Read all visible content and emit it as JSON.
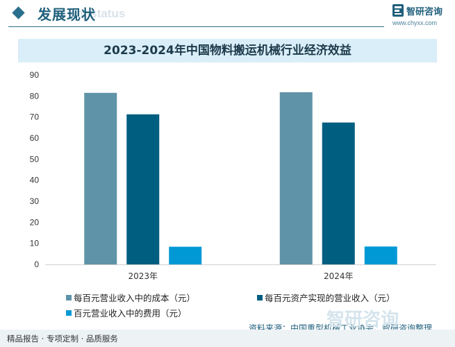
{
  "header": {
    "title": "发展现状",
    "ghost_title": "ent status",
    "logo_name": "智研咨询",
    "logo_url": "www.chyxx.com"
  },
  "colors": {
    "accent": "#2b6f8e",
    "series": [
      "#5f93a8",
      "#005e80",
      "#0099d6"
    ]
  },
  "chart_data": {
    "type": "bar",
    "title": "2023-2024年中国物料搬运机械行业经济效益",
    "categories": [
      "2023年",
      "2024年"
    ],
    "series": [
      {
        "name": "每百元营业收入中的成本（元）",
        "values": [
          81.5,
          81.8
        ]
      },
      {
        "name": "每百元资产实现的营业收入（元）",
        "values": [
          71.3,
          67.4
        ]
      },
      {
        "name": "百元营业收入中的费用（元）",
        "values": [
          8.4,
          8.5
        ]
      }
    ],
    "ylim": [
      0,
      90
    ],
    "yticks": [
      0,
      10,
      20,
      30,
      40,
      50,
      60,
      70,
      80,
      90
    ],
    "xlabel": "",
    "ylabel": "",
    "legend": "bottom",
    "grid": false
  },
  "source": "资料来源：中国重型机械工业协会、智研咨询整理",
  "footer": {
    "text": "精品报告 · 专项定制 · 品质服务",
    "logo": "智研咨询"
  }
}
